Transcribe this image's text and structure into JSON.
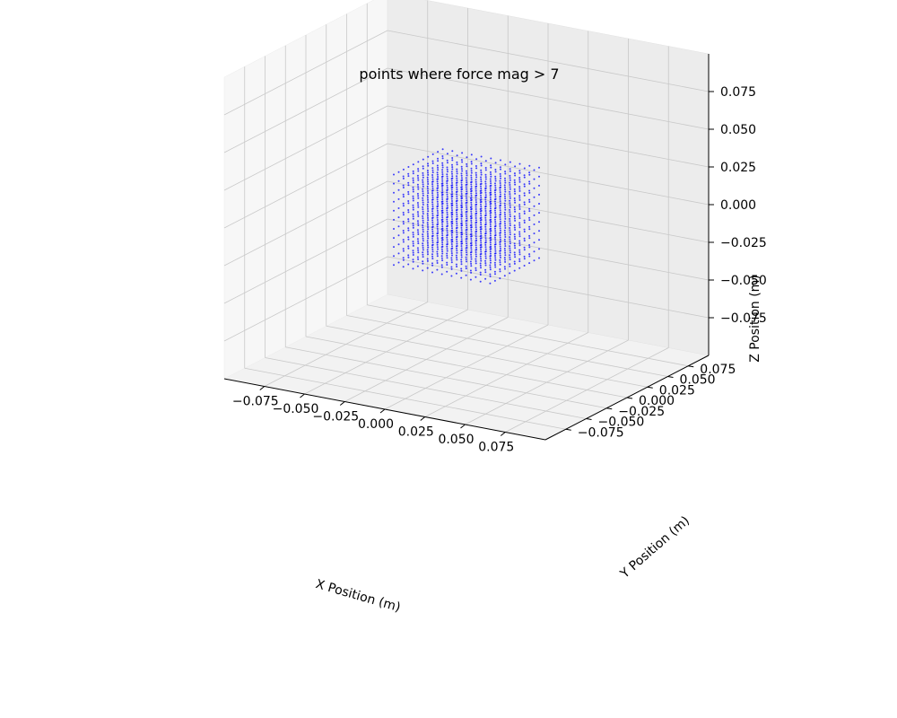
{
  "chart_data": {
    "type": "scatter3d",
    "title": "points where force mag > 7",
    "xlabel": "X Position (m)",
    "ylabel": "Y Position (m)",
    "zlabel": "Z Position (m)",
    "xlim": [
      -0.1,
      0.1
    ],
    "ylim": [
      -0.1,
      0.1
    ],
    "zlim": [
      -0.1,
      0.1
    ],
    "xticks": [
      -0.075,
      -0.05,
      -0.025,
      0.0,
      0.025,
      0.05,
      0.075
    ],
    "yticks": [
      -0.075,
      -0.05,
      -0.025,
      0.0,
      0.025,
      0.05,
      0.075
    ],
    "zticks": [
      -0.075,
      -0.05,
      -0.025,
      0.0,
      0.025,
      0.05,
      0.075
    ],
    "xtick_labels": [
      "−0.075",
      "−0.050",
      "−0.025",
      "0.000",
      "0.025",
      "0.050",
      "0.075"
    ],
    "ytick_labels": [
      "−0.075",
      "−0.050",
      "−0.025",
      "0.000",
      "0.025",
      "0.050",
      "0.075"
    ],
    "ztick_labels": [
      "−0.075",
      "−0.050",
      "−0.025",
      "0.000",
      "0.025",
      "0.050",
      "0.075"
    ],
    "grid": true,
    "series": [
      {
        "color": "#0000ff",
        "region": {
          "x": [
            -0.03,
            0.03
          ],
          "y": [
            -0.03,
            0.03
          ],
          "z": [
            -0.03,
            0.03
          ]
        },
        "grid_steps": 10
      }
    ]
  }
}
